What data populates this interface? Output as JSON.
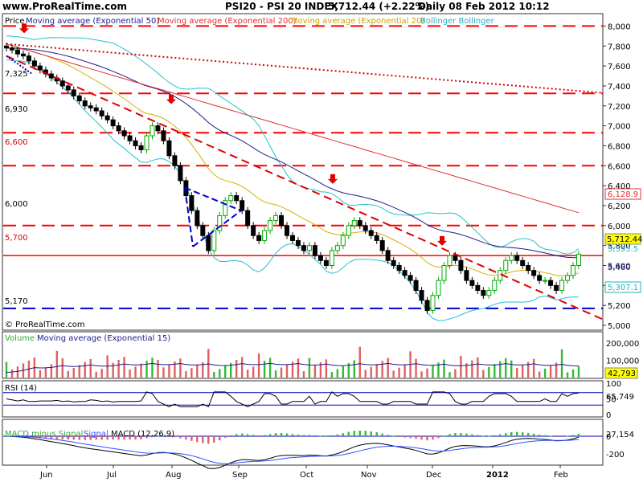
{
  "header": {
    "logo": "www.ProRealTime.com",
    "title": "PSI20 - PSI 20 INDEX",
    "change": "5,712.44 (+2.22%)",
    "period": "Daily  08 Feb 2012 10:12"
  },
  "colors": {
    "price_up": "#00aa00",
    "price_down": "#000000",
    "ema50": "#1c1c8c",
    "ema200": "#e03030",
    "ema20": "#d4b000",
    "bollinger": "#27c0d0",
    "red_level": "#ff0000",
    "blue_level": "#0000c8",
    "volume_up": "#33bb33",
    "volume_down": "#e06060",
    "macd_hist_pos": "#33bb33",
    "macd_hist_neg": "#e06060",
    "macd_line": "#000000",
    "signal_line": "#3050ff"
  },
  "price_panel": {
    "legend": {
      "price": "Price",
      "ema50": "Moving average (Exponential 50)",
      "ema200": "Moving average (Exponential 200)",
      "ema20": "Moving average (Exponential 20)",
      "bollinger": "Bollinger Bollinger"
    },
    "level_labels": [
      "7,325",
      "6,930",
      "6,600",
      "6,000",
      "5,700",
      "5,170"
    ],
    "right_values": {
      "ema200": "6,128.9",
      "last": "5,712.44",
      "lower_band": "5,307.1",
      "value_a": "5,593.5",
      "value_b": "5,460"
    },
    "copyright": "© ProRealTime.com"
  },
  "volume_panel": {
    "legend": {
      "volume": "Volume",
      "ema15": "Moving average (Exponential 15)"
    },
    "last_value": "42,793"
  },
  "rsi_panel": {
    "legend": "RSI (14)",
    "last_value": "65,749"
  },
  "macd_panel": {
    "legend_hist": "MACD minus Signal",
    "legend_signal": "Signal",
    "legend_macd": "MACD (12,26,9)",
    "last_value": "27,154"
  },
  "x_axis": {
    "months": [
      "Jun",
      "Jul",
      "Aug",
      "Sep",
      "Oct",
      "Nov",
      "Dec",
      "2012",
      "Feb"
    ]
  },
  "chart_data": {
    "type": "candlestick",
    "title": "PSI20 - PSI 20 INDEX",
    "period": "Daily",
    "ylim": [
      5000,
      8100
    ],
    "y_ticks": [
      "5,000",
      "5,200",
      "5,400",
      "5,600",
      "5,800",
      "6,000",
      "6,200",
      "6,400",
      "6,600",
      "6,800",
      "7,000",
      "7,200",
      "7,400",
      "7,600",
      "7,800",
      "8,000"
    ],
    "x_ticks": [
      "Jun",
      "Jul",
      "Aug",
      "Sep",
      "Oct",
      "Nov",
      "Dec",
      "2012",
      "Feb"
    ],
    "close_series": [
      7780,
      7760,
      7720,
      7700,
      7650,
      7600,
      7560,
      7520,
      7480,
      7450,
      7400,
      7360,
      7300,
      7250,
      7200,
      7180,
      7150,
      7100,
      7060,
      7000,
      6950,
      6900,
      6850,
      6800,
      6760,
      6900,
      7000,
      6950,
      6850,
      6700,
      6600,
      6450,
      6300,
      6150,
      6000,
      5900,
      5750,
      5950,
      6100,
      6250,
      6300,
      6250,
      6150,
      6000,
      5900,
      5850,
      5950,
      6050,
      6100,
      6000,
      5900,
      5850,
      5800,
      5750,
      5800,
      5700,
      5650,
      5600,
      5750,
      5800,
      5900,
      6000,
      6050,
      6000,
      5950,
      5900,
      5850,
      5750,
      5650,
      5600,
      5550,
      5500,
      5450,
      5350,
      5250,
      5150,
      5300,
      5450,
      5600,
      5700,
      5650,
      5550,
      5450,
      5400,
      5350,
      5300,
      5350,
      5450,
      5550,
      5650,
      5700,
      5650,
      5600,
      5550,
      5500,
      5450,
      5450,
      5400,
      5350,
      5450,
      5500,
      5600,
      5712
    ],
    "levels": [
      {
        "label": "7,325",
        "value": 7325,
        "style": "dashed",
        "color": "#ff0000"
      },
      {
        "label": "6,930",
        "value": 6930,
        "style": "dashed",
        "color": "#ff0000"
      },
      {
        "label": "6,600",
        "value": 6600,
        "style": "dashed",
        "color": "#ff0000"
      },
      {
        "label": "6,000",
        "value": 6000,
        "style": "dashed",
        "color": "#ff0000"
      },
      {
        "label": "5,700",
        "value": 5700,
        "style": "solid",
        "color": "#ff0000"
      },
      {
        "label": "5,170",
        "value": 5170,
        "style": "dashed",
        "color": "#0000c8"
      },
      {
        "label": "",
        "value": 8000,
        "style": "dashed",
        "color": "#ff0000"
      }
    ],
    "volume_ylim": [
      0,
      250000
    ],
    "volume_ticks": [
      "100,000",
      "200,000"
    ],
    "rsi_ylim": [
      0,
      100
    ],
    "rsi_ticks": [
      "0",
      "50",
      "100"
    ],
    "macd_ticks": [
      "0",
      "-200"
    ]
  }
}
